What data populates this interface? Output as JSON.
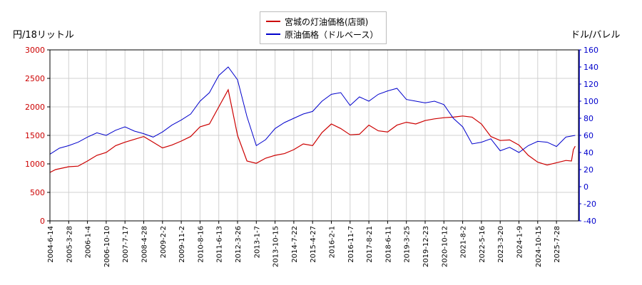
{
  "chart_data": {
    "type": "line",
    "left_axis_label": "円/18リットル",
    "right_axis_label": "ドル/バレル",
    "left_ylim": [
      0,
      3000
    ],
    "left_yticks": [
      0,
      500,
      1000,
      1500,
      2000,
      2500,
      3000
    ],
    "right_ylim": [
      -40,
      160
    ],
    "right_yticks": [
      -40,
      -20,
      0,
      20,
      40,
      60,
      80,
      100,
      120,
      140,
      160
    ],
    "x_tick_labels": [
      "2004-6-14",
      "2005-3-28",
      "2006-1-4",
      "2006-10-10",
      "2007-7-17",
      "2008-4-28",
      "2009-2-2",
      "2009-11-2",
      "2010-8-16",
      "2011-6-13",
      "2012-3-26",
      "2013-1-7",
      "2013-10-15",
      "2014-7-22",
      "2015-4-27",
      "2016-2-1",
      "2016-11-7",
      "2017-8-21",
      "2018-6-11",
      "2019-3-25",
      "2019-12-23",
      "2020-10-12",
      "2021-8-2",
      "2022-5-16",
      "2023-3-20",
      "2024-1-9",
      "2024-10-15",
      "2025-7-28"
    ],
    "grid": true,
    "legend_position": "top-center",
    "series": [
      {
        "name": "宮城の灯油価格(店頭)",
        "axis": "left",
        "color": "#cc0000",
        "x": [
          0,
          0.3,
          1,
          1.5,
          2,
          2.5,
          3,
          3.5,
          4,
          4.5,
          5,
          5.5,
          6,
          6.5,
          7,
          7.5,
          8,
          8.5,
          9,
          9.5,
          10,
          10.5,
          11,
          11.5,
          12,
          12.5,
          13,
          13.5,
          14,
          14.5,
          15,
          15.5,
          16,
          16.5,
          17,
          17.5,
          18,
          18.5,
          19,
          19.5,
          20,
          20.5,
          21,
          21.5,
          22,
          22.5,
          23,
          23.5,
          24,
          24.5,
          25,
          25.5,
          26,
          26.5,
          27,
          27.5,
          27.8,
          27.9,
          28
        ],
        "values": [
          850,
          900,
          950,
          960,
          1050,
          1150,
          1200,
          1320,
          1380,
          1430,
          1480,
          1380,
          1280,
          1330,
          1400,
          1480,
          1650,
          1700,
          2000,
          2300,
          1500,
          1050,
          1010,
          1100,
          1150,
          1180,
          1250,
          1350,
          1320,
          1550,
          1700,
          1620,
          1510,
          1520,
          1680,
          1580,
          1560,
          1680,
          1730,
          1700,
          1760,
          1790,
          1810,
          1820,
          1840,
          1820,
          1700,
          1480,
          1410,
          1420,
          1330,
          1150,
          1030,
          980,
          1020,
          1060,
          1050,
          1250,
          1310
        ],
        "note_x": "x is the index position along the printed tick labels"
      },
      {
        "name": "原油価格（ドルベース）",
        "axis": "right",
        "color": "#0000cc",
        "x": [
          0,
          0.5,
          1,
          1.5,
          2,
          2.5,
          3,
          3.5,
          4,
          4.5,
          5,
          5.5,
          6,
          6.5,
          7,
          7.5,
          8,
          8.5,
          9,
          9.5,
          10,
          10.5,
          11,
          11.5,
          12,
          12.5,
          13,
          13.5,
          14,
          14.5,
          15,
          15.5,
          16,
          16.5,
          17,
          17.5,
          18,
          18.5,
          19,
          19.5,
          20,
          20.5,
          21,
          21.5,
          22,
          22.5,
          23,
          23.5,
          24,
          24.5,
          25,
          25.5,
          26,
          26.5,
          27,
          27.5,
          28
        ],
        "values": [
          38,
          45,
          48,
          52,
          58,
          63,
          60,
          66,
          70,
          65,
          62,
          58,
          64,
          72,
          78,
          85,
          100,
          110,
          130,
          140,
          125,
          82,
          48,
          55,
          68,
          75,
          80,
          85,
          88,
          100,
          108,
          110,
          95,
          105,
          100,
          108,
          112,
          115,
          102,
          100,
          98,
          100,
          96,
          80,
          70,
          50,
          52,
          56,
          42,
          46,
          40,
          48,
          53,
          52,
          47,
          58,
          60
        ],
        "note_x": "x is the index position along the printed tick labels"
      }
    ]
  }
}
